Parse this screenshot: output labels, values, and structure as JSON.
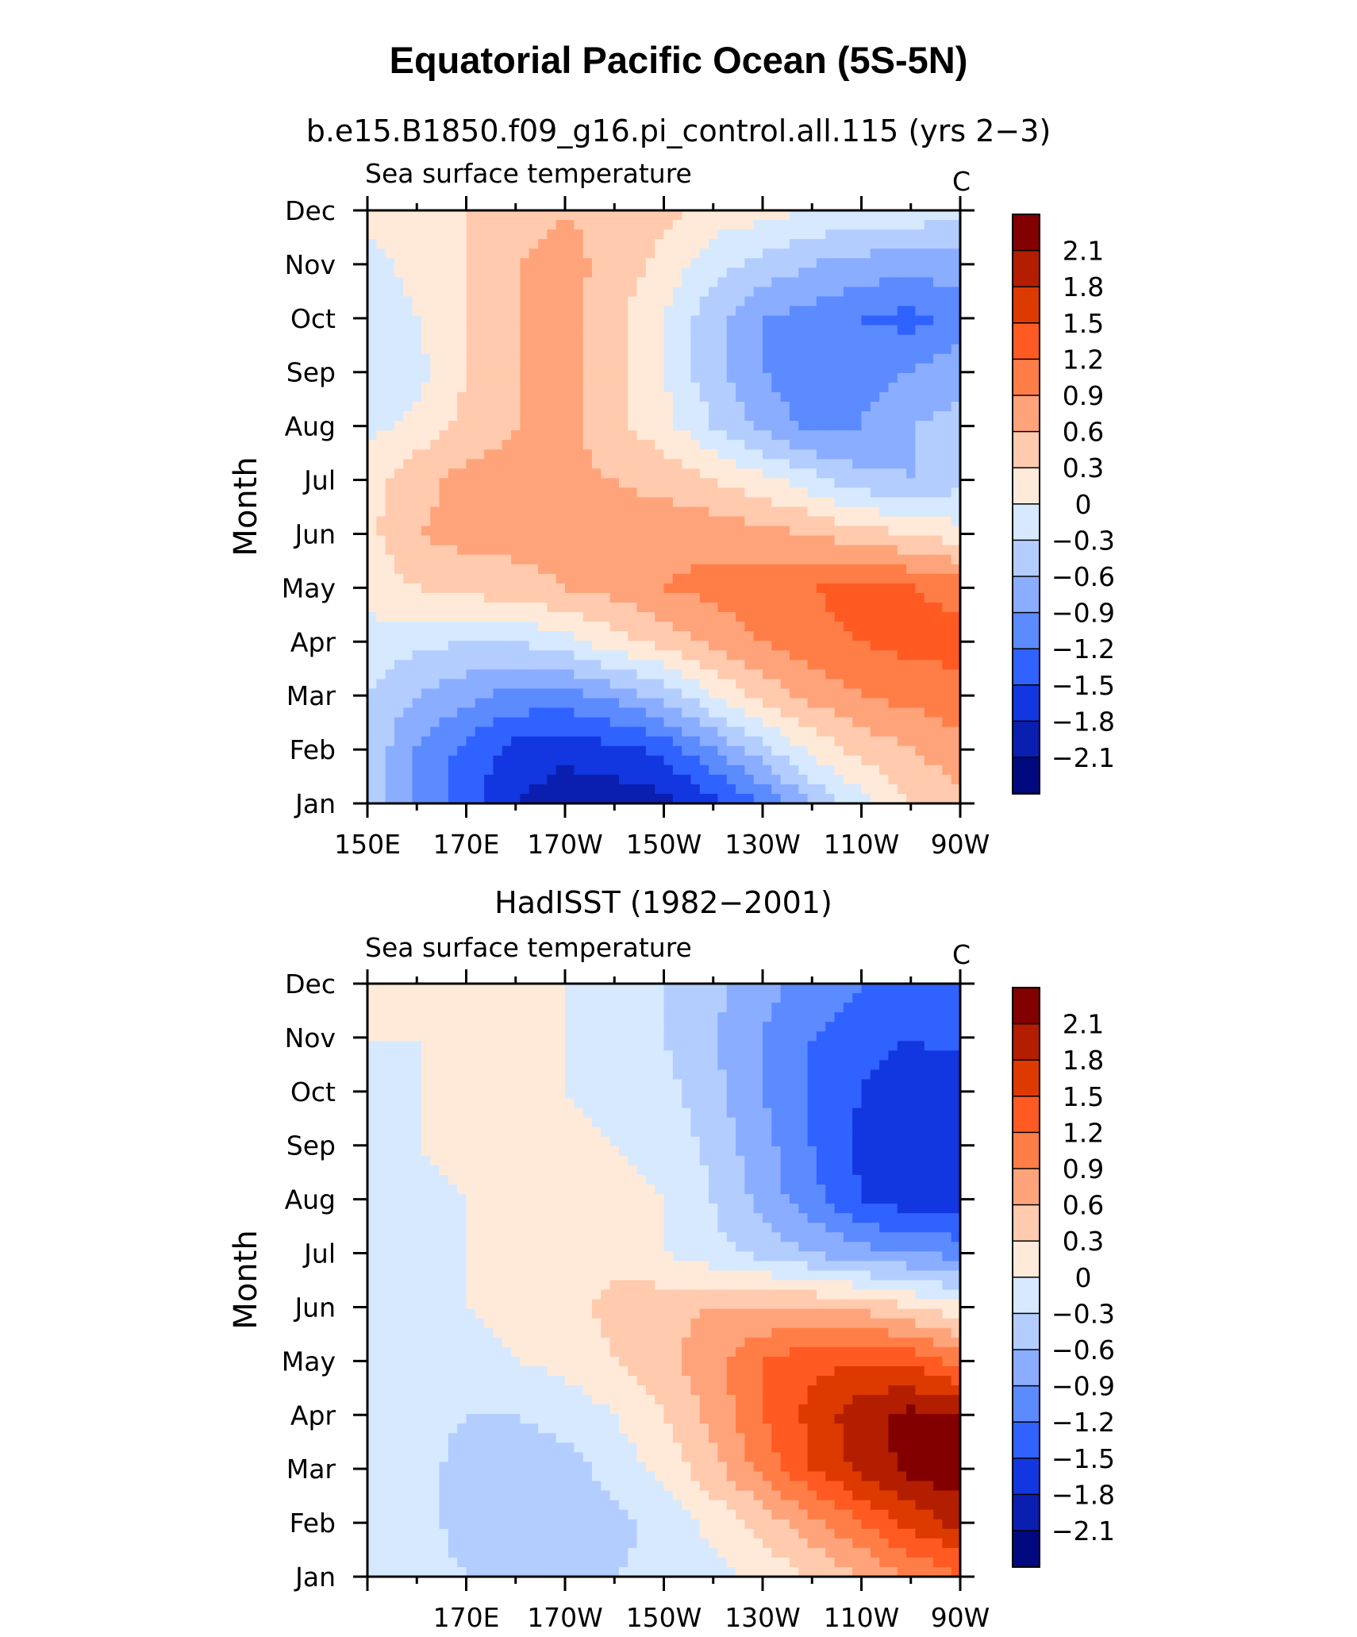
{
  "figure": {
    "title": "Equatorial Pacific Ocean (5S-5N)"
  },
  "colorbar": {
    "levels": [
      "2.1",
      "1.8",
      "1.5",
      "1.2",
      "0.9",
      "0.6",
      "0.3",
      "0",
      "−0.3",
      "−0.6",
      "−0.9",
      "−1.2",
      "−1.5",
      "−1.8",
      "−2.1"
    ],
    "colors": [
      "#820000",
      "#b31e00",
      "#dd3a00",
      "#ff5a22",
      "#ff7e47",
      "#ffa37a",
      "#ffcaad",
      "#ffead9",
      "#d6e9ff",
      "#b3cdff",
      "#8aadff",
      "#5c8aff",
      "#2f62ff",
      "#1236e0",
      "#0a1fb0",
      "#000a7e"
    ]
  },
  "chart_data": [
    {
      "type": "heatmap",
      "title": "b.e15.B1850.f09_g16.pi_control.all.115 (yrs 2−3)",
      "left_label": "Sea surface temperature",
      "units": "C",
      "ylabel": "Month",
      "x_ticks": [
        "150E",
        "170E",
        "170W",
        "150W",
        "130W",
        "110W",
        "90W"
      ],
      "x_tick_lon": [
        150,
        170,
        190,
        210,
        230,
        250,
        270
      ],
      "xlim": [
        150,
        270
      ],
      "y_ticks": [
        "Jan",
        "Feb",
        "Mar",
        "Apr",
        "May",
        "Jun",
        "Jul",
        "Aug",
        "Sep",
        "Oct",
        "Nov",
        "Dec"
      ],
      "lon": [
        150,
        160,
        170,
        180,
        190,
        200,
        210,
        220,
        230,
        240,
        250,
        260,
        270
      ],
      "values": [
        [
          -0.4,
          -0.9,
          -1.4,
          -1.8,
          -2.0,
          -2.0,
          -1.9,
          -1.6,
          -1.2,
          -0.6,
          -0.1,
          0.3,
          0.5
        ],
        [
          -0.4,
          -0.9,
          -1.3,
          -1.6,
          -1.7,
          -1.6,
          -1.4,
          -0.9,
          -0.4,
          0.1,
          0.4,
          0.6,
          0.8
        ],
        [
          -0.3,
          -0.6,
          -0.8,
          -1.0,
          -1.0,
          -0.8,
          -0.5,
          0.0,
          0.4,
          0.7,
          0.9,
          1.0,
          1.1
        ],
        [
          -0.1,
          -0.2,
          -0.3,
          -0.3,
          -0.1,
          0.2,
          0.4,
          0.7,
          0.9,
          1.1,
          1.2,
          1.3,
          1.3
        ],
        [
          0.1,
          0.3,
          0.4,
          0.5,
          0.6,
          0.7,
          0.9,
          1.0,
          1.1,
          1.2,
          1.3,
          1.2,
          1.1
        ],
        [
          0.2,
          0.6,
          0.7,
          0.7,
          0.7,
          0.7,
          0.8,
          0.8,
          0.7,
          0.6,
          0.4,
          0.3,
          0.1
        ],
        [
          0.2,
          0.5,
          0.7,
          0.7,
          0.7,
          0.6,
          0.5,
          0.3,
          0.1,
          -0.2,
          -0.5,
          -0.6,
          -0.4
        ],
        [
          -0.1,
          0.1,
          0.4,
          0.6,
          0.7,
          0.4,
          0.1,
          -0.3,
          -0.7,
          -1.0,
          -0.9,
          -0.6,
          -0.5
        ],
        [
          -0.2,
          -0.1,
          0.3,
          0.6,
          0.7,
          0.4,
          0.0,
          -0.5,
          -0.9,
          -1.1,
          -1.0,
          -0.9,
          -0.7
        ],
        [
          -0.2,
          0.0,
          0.3,
          0.6,
          0.7,
          0.4,
          0.0,
          -0.5,
          -0.9,
          -1.0,
          -1.2,
          -1.3,
          -1.1
        ],
        [
          -0.1,
          0.1,
          0.3,
          0.6,
          0.7,
          0.5,
          0.2,
          -0.2,
          -0.4,
          -0.6,
          -0.7,
          -0.8,
          -0.7
        ],
        [
          0.1,
          0.2,
          0.3,
          0.5,
          0.6,
          0.5,
          0.4,
          0.2,
          0.1,
          0.0,
          -0.1,
          -0.1,
          -0.2
        ]
      ]
    },
    {
      "type": "heatmap",
      "title": "HadISST (1982−2001)",
      "left_label": "Sea surface temperature",
      "units": "C",
      "ylabel": "Month",
      "x_ticks": [
        "170E",
        "170W",
        "150W",
        "130W",
        "110W",
        "90W"
      ],
      "x_tick_lon": [
        170,
        190,
        210,
        230,
        250,
        270
      ],
      "xlim": [
        150,
        270
      ],
      "y_ticks": [
        "Jan",
        "Feb",
        "Mar",
        "Apr",
        "May",
        "Jun",
        "Jul",
        "Aug",
        "Sep",
        "Oct",
        "Nov",
        "Dec"
      ],
      "lon": [
        150,
        160,
        170,
        180,
        190,
        200,
        210,
        220,
        230,
        240,
        250,
        260,
        270
      ],
      "values": [
        [
          0.0,
          -0.2,
          -0.3,
          -0.4,
          -0.4,
          -0.3,
          -0.2,
          -0.1,
          0.1,
          0.3,
          0.6,
          0.9,
          1.2
        ],
        [
          -0.1,
          -0.2,
          -0.4,
          -0.5,
          -0.5,
          -0.4,
          -0.2,
          0.1,
          0.4,
          0.8,
          1.2,
          1.6,
          1.9
        ],
        [
          -0.1,
          -0.2,
          -0.4,
          -0.5,
          -0.4,
          -0.2,
          0.1,
          0.5,
          1.0,
          1.5,
          1.9,
          2.2,
          2.3
        ],
        [
          -0.1,
          -0.2,
          -0.3,
          -0.3,
          -0.2,
          0.0,
          0.3,
          0.7,
          1.2,
          1.6,
          2.0,
          2.2,
          2.1
        ],
        [
          0.0,
          -0.1,
          -0.1,
          0.0,
          0.1,
          0.3,
          0.5,
          0.8,
          1.2,
          1.4,
          1.5,
          1.4,
          1.1
        ],
        [
          -0.1,
          0.0,
          0.0,
          0.1,
          0.2,
          0.4,
          0.5,
          0.6,
          0.6,
          0.6,
          0.5,
          0.3,
          0.1
        ],
        [
          -0.1,
          0.0,
          0.0,
          0.1,
          0.2,
          0.2,
          0.0,
          -0.2,
          -0.4,
          -0.6,
          -0.8,
          -0.9,
          -1.0
        ],
        [
          -0.1,
          -0.1,
          0.0,
          0.1,
          0.2,
          0.1,
          0.0,
          -0.3,
          -0.7,
          -1.1,
          -1.5,
          -1.7,
          -1.7
        ],
        [
          -0.1,
          0.0,
          0.1,
          0.2,
          0.1,
          0.0,
          -0.1,
          -0.4,
          -0.8,
          -1.2,
          -1.6,
          -1.8,
          -1.8
        ],
        [
          0.0,
          0.0,
          0.1,
          0.1,
          0.0,
          -0.1,
          -0.2,
          -0.5,
          -0.9,
          -1.2,
          -1.5,
          -1.7,
          -1.7
        ],
        [
          0.0,
          0.0,
          0.1,
          0.1,
          0.0,
          -0.1,
          -0.3,
          -0.6,
          -0.9,
          -1.2,
          -1.4,
          -1.5,
          -1.4
        ],
        [
          0.0,
          0.1,
          0.1,
          0.1,
          0.0,
          -0.1,
          -0.3,
          -0.5,
          -0.8,
          -1.0,
          -1.2,
          -1.3,
          -1.2
        ]
      ]
    }
  ]
}
